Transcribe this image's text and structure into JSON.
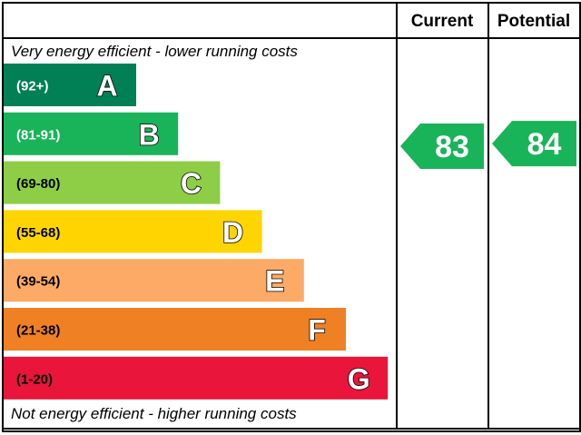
{
  "chart_data": {
    "type": "bar",
    "headers": {
      "current": "Current",
      "potential": "Potential"
    },
    "top_note": "Very energy efficient - lower running costs",
    "bottom_note": "Not energy efficient - higher running costs",
    "bands": [
      {
        "letter": "A",
        "range": "(92+)",
        "min": 92,
        "max": 100,
        "color": "#008054",
        "label_color": "#ffffff"
      },
      {
        "letter": "B",
        "range": "(81-91)",
        "min": 81,
        "max": 91,
        "color": "#19b459",
        "label_color": "#ffffff"
      },
      {
        "letter": "C",
        "range": "(69-80)",
        "min": 69,
        "max": 80,
        "color": "#8dce46",
        "label_color": "#000000"
      },
      {
        "letter": "D",
        "range": "(55-68)",
        "min": 55,
        "max": 68,
        "color": "#ffd500",
        "label_color": "#000000"
      },
      {
        "letter": "E",
        "range": "(39-54)",
        "min": 39,
        "max": 54,
        "color": "#fcaa65",
        "label_color": "#000000"
      },
      {
        "letter": "F",
        "range": "(21-38)",
        "min": 21,
        "max": 38,
        "color": "#ef8023",
        "label_color": "#000000"
      },
      {
        "letter": "G",
        "range": "(1-20)",
        "min": 1,
        "max": 20,
        "color": "#e9153b",
        "label_color": "#000000"
      }
    ],
    "current": {
      "value": 83,
      "label": "83",
      "band": "B",
      "color": "#19b459"
    },
    "potential": {
      "value": 84,
      "label": "84",
      "band": "B",
      "color": "#19b459"
    }
  }
}
